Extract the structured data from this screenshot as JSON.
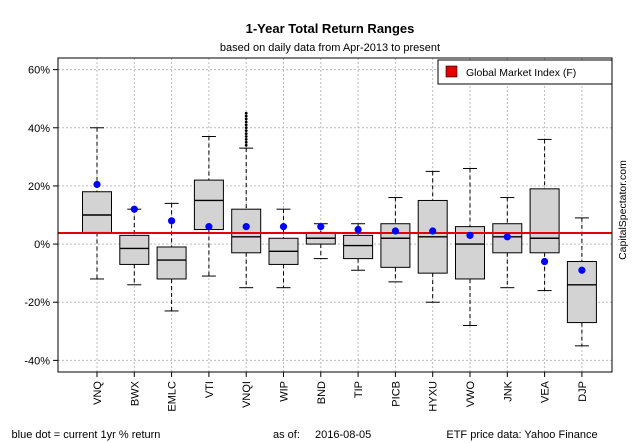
{
  "chart_data": {
    "type": "boxplot",
    "title": "1-Year Total Return Ranges",
    "subtitle": "based on daily data from Apr-2013 to present",
    "y_unit": "%",
    "ylim": [
      -44,
      64
    ],
    "yticks": [
      -40,
      -20,
      0,
      20,
      40,
      60
    ],
    "ytick_labels": [
      "-40%",
      "-20%",
      "0%",
      "20%",
      "40%",
      "60%"
    ],
    "grid": true,
    "legend": {
      "position": "top-right",
      "label": "Global Market Index (F)",
      "color": "#e00000"
    },
    "reference_line": {
      "value": 3.8,
      "color": "#e00000",
      "label": "Global Market Index (F)"
    },
    "box_color": "#d3d3d3",
    "dot_color": "#0000ff",
    "watermark": "CapitalSpectator.com",
    "categories": [
      "VNQ",
      "BWX",
      "EMLC",
      "VTI",
      "VNQI",
      "WIP",
      "BND",
      "TIP",
      "PICB",
      "HYXU",
      "VWO",
      "JNK",
      "VEA",
      "DJP"
    ],
    "series": [
      {
        "name": "VNQ",
        "min": -12,
        "q1": 4,
        "median": 10,
        "q3": 18,
        "max": 40,
        "current": 20.5,
        "outliers": []
      },
      {
        "name": "BWX",
        "min": -14,
        "q1": -7,
        "median": -1.5,
        "q3": 3,
        "max": 12,
        "current": 12,
        "outliers": []
      },
      {
        "name": "EMLC",
        "min": -23,
        "q1": -12,
        "median": -5.5,
        "q3": -1,
        "max": 14,
        "current": 8,
        "outliers": []
      },
      {
        "name": "VTI",
        "min": -11,
        "q1": 5,
        "median": 15,
        "q3": 22,
        "max": 37,
        "current": 6,
        "outliers": []
      },
      {
        "name": "VNQI",
        "min": -15,
        "q1": -3,
        "median": 2.5,
        "q3": 12,
        "max": 33,
        "current": 6,
        "outliers": [
          34,
          35,
          36,
          37,
          38,
          39,
          40,
          41,
          42,
          43,
          44,
          45
        ]
      },
      {
        "name": "WIP",
        "min": -15,
        "q1": -7,
        "median": -2.5,
        "q3": 2,
        "max": 12,
        "current": 6,
        "outliers": []
      },
      {
        "name": "BND",
        "min": -5,
        "q1": 0,
        "median": 2,
        "q3": 4,
        "max": 7,
        "current": 6,
        "outliers": []
      },
      {
        "name": "TIP",
        "min": -9,
        "q1": -5,
        "median": -0.5,
        "q3": 3,
        "max": 7,
        "current": 5,
        "outliers": []
      },
      {
        "name": "PICB",
        "min": -13,
        "q1": -8,
        "median": 2,
        "q3": 7,
        "max": 16,
        "current": 4.5,
        "outliers": []
      },
      {
        "name": "HYXU",
        "min": -20,
        "q1": -10,
        "median": 2.5,
        "q3": 15,
        "max": 25,
        "current": 4.5,
        "outliers": []
      },
      {
        "name": "VWO",
        "min": -28,
        "q1": -12,
        "median": 0,
        "q3": 6,
        "max": 26,
        "current": 3,
        "outliers": []
      },
      {
        "name": "JNK",
        "min": -15,
        "q1": -3,
        "median": 2.5,
        "q3": 7,
        "max": 16,
        "current": 2.5,
        "outliers": []
      },
      {
        "name": "VEA",
        "min": -16,
        "q1": -3,
        "median": 2,
        "q3": 19,
        "max": 36,
        "current": -6,
        "outliers": []
      },
      {
        "name": "DJP",
        "min": -35,
        "q1": -27,
        "median": -14,
        "q3": -6,
        "max": 9,
        "current": -9,
        "outliers": []
      }
    ]
  },
  "footer": {
    "left": "blue dot = current 1yr % return",
    "asof_label": "as of:",
    "asof_value": "2016-08-05",
    "right": "ETF price data: Yahoo Finance"
  }
}
